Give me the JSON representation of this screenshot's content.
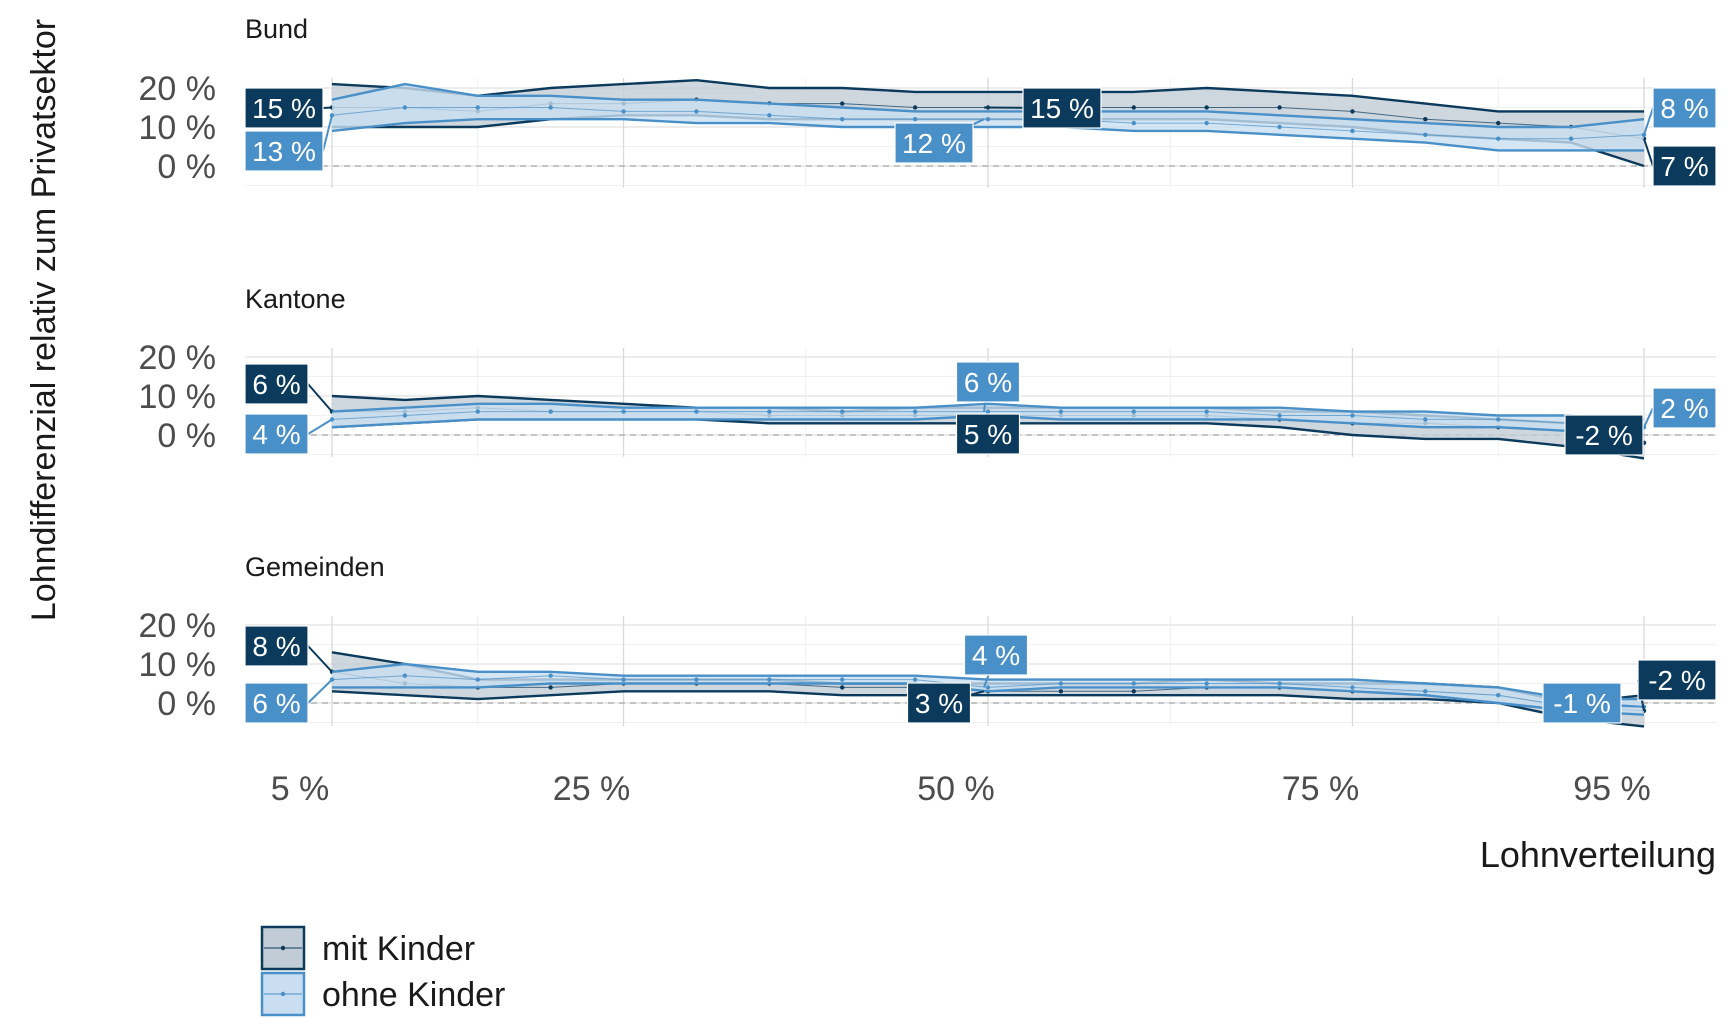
{
  "chart_data": {
    "type": "line",
    "ylabel": "Lohndifferenzial relativ zum Privatsektor",
    "xlabel": "Lohnverteilung",
    "x_ticks": [
      "5 %",
      "25 %",
      "50 %",
      "75 %",
      "95 %"
    ],
    "x_tick_values": [
      5,
      25,
      50,
      75,
      95
    ],
    "x": [
      5,
      10,
      15,
      20,
      25,
      30,
      35,
      40,
      45,
      50,
      55,
      60,
      65,
      70,
      75,
      80,
      85,
      90,
      95
    ],
    "xlim": [
      0,
      100
    ],
    "ylim": [
      -5,
      25
    ],
    "y_ticks": [
      "0 %",
      "10 %",
      "20 %"
    ],
    "y_tick_values": [
      0,
      10,
      20
    ],
    "reference_line": 0,
    "grid": true,
    "legend_position": "bottom-left",
    "colors": {
      "mit Kinder": "#0b3a5c",
      "ohne Kinder": "#4a90c8",
      "mit_fill": "#c2ccd6",
      "ohne_fill": "#c9def0"
    },
    "legend": [
      "mit Kinder",
      "ohne Kinder"
    ],
    "panels": [
      {
        "title": "Bund",
        "series": [
          {
            "name": "mit Kinder",
            "values": [
              15,
              15,
              14,
              16,
              16,
              17,
              16,
              16,
              15,
              15,
              15,
              15,
              15,
              15,
              14,
              12,
              11,
              10,
              7
            ],
            "upper": [
              21,
              20,
              18,
              20,
              21,
              22,
              20,
              20,
              19,
              19,
              19,
              19,
              20,
              19,
              18,
              16,
              14,
              14,
              14
            ],
            "lower": [
              10,
              10,
              10,
              12,
              13,
              13,
              12,
              12,
              12,
              12,
              12,
              12,
              12,
              11,
              10,
              8,
              7,
              6,
              0
            ]
          },
          {
            "name": "ohne Kinder",
            "values": [
              13,
              15,
              15,
              15,
              14,
              14,
              13,
              12,
              12,
              12,
              12,
              11,
              11,
              10,
              9,
              8,
              7,
              7,
              8
            ],
            "upper": [
              17,
              21,
              18,
              18,
              17,
              17,
              16,
              15,
              14,
              14,
              14,
              14,
              14,
              13,
              12,
              11,
              10,
              10,
              12
            ],
            "lower": [
              9,
              11,
              12,
              12,
              12,
              11,
              11,
              10,
              10,
              10,
              10,
              9,
              9,
              8,
              7,
              6,
              4,
              4,
              4
            ]
          }
        ],
        "labels": [
          {
            "text": "15 %",
            "series": "mit Kinder"
          },
          {
            "text": "13 %",
            "series": "ohne Kinder"
          },
          {
            "text": "15 %",
            "series": "mit Kinder"
          },
          {
            "text": "12 %",
            "series": "ohne Kinder"
          },
          {
            "text": "8 %",
            "series": "ohne Kinder"
          },
          {
            "text": "7 %",
            "series": "mit Kinder"
          }
        ]
      },
      {
        "title": "Kantone",
        "series": [
          {
            "name": "mit Kinder",
            "values": [
              6,
              6,
              7,
              6,
              6,
              6,
              5,
              5,
              5,
              5,
              5,
              5,
              5,
              4,
              3,
              3,
              2,
              1,
              -2
            ],
            "upper": [
              10,
              9,
              10,
              9,
              8,
              7,
              7,
              6,
              7,
              7,
              7,
              7,
              7,
              6,
              6,
              5,
              4,
              3,
              2
            ],
            "lower": [
              2,
              3,
              4,
              4,
              4,
              4,
              3,
              3,
              3,
              3,
              3,
              3,
              3,
              2,
              0,
              -1,
              -1,
              -3,
              -6
            ]
          },
          {
            "name": "ohne Kinder",
            "values": [
              4,
              5,
              6,
              6,
              6,
              6,
              6,
              6,
              6,
              6,
              6,
              6,
              6,
              5,
              5,
              4,
              4,
              3,
              2
            ],
            "upper": [
              6,
              7,
              8,
              8,
              7,
              7,
              7,
              7,
              7,
              8,
              7,
              7,
              7,
              7,
              6,
              6,
              5,
              5,
              4
            ],
            "lower": [
              2,
              3,
              4,
              4,
              4,
              4,
              4,
              4,
              4,
              5,
              4,
              4,
              4,
              4,
              3,
              2,
              2,
              1,
              0
            ]
          }
        ],
        "labels": [
          {
            "text": "6 %",
            "series": "mit Kinder"
          },
          {
            "text": "4 %",
            "series": "ohne Kinder"
          },
          {
            "text": "6 %",
            "series": "ohne Kinder"
          },
          {
            "text": "5 %",
            "series": "mit Kinder"
          },
          {
            "text": "2 %",
            "series": "ohne Kinder"
          },
          {
            "text": "-2 %",
            "series": "mit Kinder"
          }
        ]
      },
      {
        "title": "Gemeinden",
        "series": [
          {
            "name": "mit Kinder",
            "values": [
              8,
              5,
              4,
              4,
              5,
              5,
              5,
              4,
              4,
              3,
              3,
              3,
              4,
              4,
              3,
              3,
              2,
              -1,
              -2
            ],
            "upper": [
              13,
              10,
              6,
              6,
              6,
              6,
              6,
              5,
              5,
              5,
              5,
              5,
              6,
              5,
              5,
              5,
              4,
              0,
              2
            ],
            "lower": [
              3,
              2,
              1,
              2,
              3,
              3,
              3,
              2,
              2,
              2,
              2,
              2,
              2,
              2,
              1,
              1,
              0,
              -4,
              -6
            ]
          },
          {
            "name": "ohne Kinder",
            "values": [
              6,
              7,
              6,
              7,
              6,
              6,
              6,
              6,
              6,
              4,
              5,
              5,
              5,
              5,
              4,
              3,
              2,
              -1,
              -1
            ],
            "upper": [
              8,
              10,
              8,
              8,
              7,
              7,
              7,
              7,
              7,
              6,
              6,
              6,
              6,
              6,
              6,
              5,
              4,
              1,
              1
            ],
            "lower": [
              4,
              4,
              4,
              5,
              5,
              5,
              5,
              5,
              5,
              3,
              4,
              4,
              4,
              4,
              3,
              2,
              0,
              -2,
              -3
            ]
          }
        ],
        "labels": [
          {
            "text": "8 %",
            "series": "mit Kinder"
          },
          {
            "text": "6 %",
            "series": "ohne Kinder"
          },
          {
            "text": "4 %",
            "series": "ohne Kinder"
          },
          {
            "text": "3 %",
            "series": "mit Kinder"
          },
          {
            "text": "-1 %",
            "series": "ohne Kinder"
          },
          {
            "text": "-2 %",
            "series": "mit Kinder"
          }
        ]
      }
    ]
  }
}
